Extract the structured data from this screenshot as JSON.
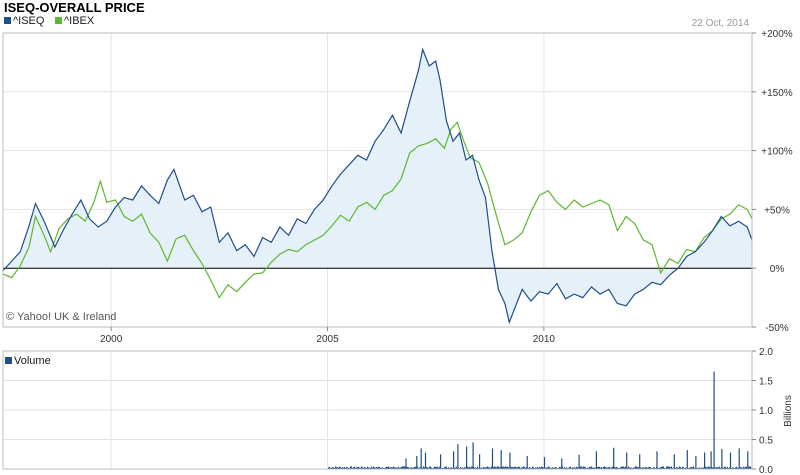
{
  "header": {
    "title": "ISEQ-OVERALL PRICE",
    "date": "22 Oct, 2014",
    "credit": "© Yahoo! UK & Ireland"
  },
  "colors": {
    "iseq": "#1f4e8c",
    "ibex": "#5cb82e",
    "area": "#e6f0f8",
    "grid": "#e3e3e3",
    "zero": "#000000",
    "volume": "#1f4e8c"
  },
  "chart_data": [
    {
      "type": "line",
      "name": "price-comparison",
      "x_unit": "year",
      "xlim": [
        1997.5,
        2014.81
      ],
      "ylim": [
        -50,
        200
      ],
      "y_ticks": [
        -50,
        0,
        50,
        100,
        150,
        200
      ],
      "y_tick_labels": [
        "-50%",
        "0%",
        "+50%",
        "+100%",
        "+150%",
        "+200%"
      ],
      "x_ticks": [
        2000,
        2005,
        2010
      ],
      "x_tick_labels": [
        "2000",
        "2005",
        "2010"
      ],
      "grid": true,
      "legend_position": "top-left",
      "series": [
        {
          "name": "^ISEQ",
          "color": "#1f4e8c",
          "fill": true,
          "points": [
            [
              1997.5,
              -2
            ],
            [
              1997.7,
              6
            ],
            [
              1997.9,
              14
            ],
            [
              1998.1,
              36
            ],
            [
              1998.25,
              55
            ],
            [
              1998.45,
              40
            ],
            [
              1998.7,
              18
            ],
            [
              1998.9,
              33
            ],
            [
              1999.1,
              46
            ],
            [
              1999.3,
              58
            ],
            [
              1999.5,
              42
            ],
            [
              1999.7,
              35
            ],
            [
              1999.9,
              40
            ],
            [
              2000.1,
              52
            ],
            [
              2000.3,
              60
            ],
            [
              2000.5,
              58
            ],
            [
              2000.7,
              70
            ],
            [
              2000.9,
              62
            ],
            [
              2001.1,
              55
            ],
            [
              2001.3,
              75
            ],
            [
              2001.45,
              84
            ],
            [
              2001.7,
              58
            ],
            [
              2001.9,
              62
            ],
            [
              2002.1,
              48
            ],
            [
              2002.3,
              52
            ],
            [
              2002.5,
              22
            ],
            [
              2002.7,
              30
            ],
            [
              2002.9,
              15
            ],
            [
              2003.1,
              20
            ],
            [
              2003.3,
              10
            ],
            [
              2003.5,
              26
            ],
            [
              2003.7,
              22
            ],
            [
              2003.9,
              35
            ],
            [
              2004.1,
              28
            ],
            [
              2004.3,
              42
            ],
            [
              2004.5,
              38
            ],
            [
              2004.7,
              50
            ],
            [
              2004.9,
              58
            ],
            [
              2005.1,
              70
            ],
            [
              2005.3,
              80
            ],
            [
              2005.5,
              88
            ],
            [
              2005.7,
              96
            ],
            [
              2005.9,
              92
            ],
            [
              2006.1,
              108
            ],
            [
              2006.3,
              118
            ],
            [
              2006.5,
              130
            ],
            [
              2006.7,
              115
            ],
            [
              2006.9,
              142
            ],
            [
              2007.1,
              168
            ],
            [
              2007.2,
              186
            ],
            [
              2007.35,
              172
            ],
            [
              2007.5,
              176
            ],
            [
              2007.6,
              160
            ],
            [
              2007.75,
              125
            ],
            [
              2007.9,
              108
            ],
            [
              2008.05,
              115
            ],
            [
              2008.2,
              92
            ],
            [
              2008.35,
              96
            ],
            [
              2008.5,
              75
            ],
            [
              2008.65,
              60
            ],
            [
              2008.8,
              15
            ],
            [
              2008.95,
              -18
            ],
            [
              2009.1,
              -30
            ],
            [
              2009.2,
              -46
            ],
            [
              2009.35,
              -32
            ],
            [
              2009.5,
              -18
            ],
            [
              2009.7,
              -28
            ],
            [
              2009.9,
              -20
            ],
            [
              2010.1,
              -22
            ],
            [
              2010.3,
              -13
            ],
            [
              2010.5,
              -26
            ],
            [
              2010.7,
              -22
            ],
            [
              2010.9,
              -25
            ],
            [
              2011.1,
              -16
            ],
            [
              2011.3,
              -22
            ],
            [
              2011.5,
              -18
            ],
            [
              2011.7,
              -30
            ],
            [
              2011.9,
              -32
            ],
            [
              2012.1,
              -22
            ],
            [
              2012.3,
              -18
            ],
            [
              2012.5,
              -12
            ],
            [
              2012.7,
              -14
            ],
            [
              2012.9,
              -6
            ],
            [
              2013.1,
              0
            ],
            [
              2013.3,
              10
            ],
            [
              2013.5,
              14
            ],
            [
              2013.7,
              22
            ],
            [
              2013.9,
              32
            ],
            [
              2014.1,
              44
            ],
            [
              2014.3,
              36
            ],
            [
              2014.5,
              40
            ],
            [
              2014.7,
              35
            ],
            [
              2014.81,
              24
            ]
          ]
        },
        {
          "name": "^IBEX",
          "color": "#5cb82e",
          "fill": false,
          "points": [
            [
              1997.5,
              -5
            ],
            [
              1997.7,
              -8
            ],
            [
              1997.9,
              2
            ],
            [
              1998.1,
              18
            ],
            [
              1998.25,
              44
            ],
            [
              1998.45,
              28
            ],
            [
              1998.6,
              14
            ],
            [
              1998.8,
              34
            ],
            [
              1999.0,
              42
            ],
            [
              1999.2,
              46
            ],
            [
              1999.4,
              40
            ],
            [
              1999.6,
              56
            ],
            [
              1999.75,
              74
            ],
            [
              1999.9,
              56
            ],
            [
              2000.1,
              58
            ],
            [
              2000.3,
              44
            ],
            [
              2000.5,
              40
            ],
            [
              2000.7,
              46
            ],
            [
              2000.9,
              30
            ],
            [
              2001.1,
              22
            ],
            [
              2001.3,
              6
            ],
            [
              2001.5,
              25
            ],
            [
              2001.7,
              28
            ],
            [
              2001.9,
              15
            ],
            [
              2002.1,
              4
            ],
            [
              2002.3,
              -10
            ],
            [
              2002.5,
              -25
            ],
            [
              2002.7,
              -14
            ],
            [
              2002.9,
              -20
            ],
            [
              2003.1,
              -12
            ],
            [
              2003.3,
              -5
            ],
            [
              2003.5,
              -4
            ],
            [
              2003.7,
              5
            ],
            [
              2003.9,
              12
            ],
            [
              2004.1,
              16
            ],
            [
              2004.3,
              14
            ],
            [
              2004.5,
              20
            ],
            [
              2004.7,
              24
            ],
            [
              2004.9,
              28
            ],
            [
              2005.1,
              36
            ],
            [
              2005.3,
              45
            ],
            [
              2005.5,
              40
            ],
            [
              2005.7,
              52
            ],
            [
              2005.9,
              56
            ],
            [
              2006.1,
              50
            ],
            [
              2006.3,
              62
            ],
            [
              2006.5,
              66
            ],
            [
              2006.7,
              76
            ],
            [
              2006.9,
              98
            ],
            [
              2007.1,
              104
            ],
            [
              2007.3,
              106
            ],
            [
              2007.5,
              110
            ],
            [
              2007.7,
              102
            ],
            [
              2007.85,
              118
            ],
            [
              2008.0,
              124
            ],
            [
              2008.15,
              108
            ],
            [
              2008.3,
              94
            ],
            [
              2008.5,
              90
            ],
            [
              2008.7,
              72
            ],
            [
              2008.9,
              45
            ],
            [
              2009.1,
              20
            ],
            [
              2009.3,
              24
            ],
            [
              2009.5,
              30
            ],
            [
              2009.7,
              48
            ],
            [
              2009.9,
              62
            ],
            [
              2010.1,
              66
            ],
            [
              2010.3,
              56
            ],
            [
              2010.5,
              50
            ],
            [
              2010.7,
              58
            ],
            [
              2010.9,
              52
            ],
            [
              2011.1,
              55
            ],
            [
              2011.3,
              58
            ],
            [
              2011.5,
              54
            ],
            [
              2011.7,
              32
            ],
            [
              2011.9,
              44
            ],
            [
              2012.1,
              38
            ],
            [
              2012.3,
              24
            ],
            [
              2012.5,
              20
            ],
            [
              2012.7,
              -4
            ],
            [
              2012.9,
              8
            ],
            [
              2013.1,
              4
            ],
            [
              2013.3,
              16
            ],
            [
              2013.5,
              14
            ],
            [
              2013.7,
              26
            ],
            [
              2013.9,
              32
            ],
            [
              2014.1,
              42
            ],
            [
              2014.3,
              46
            ],
            [
              2014.5,
              54
            ],
            [
              2014.7,
              50
            ],
            [
              2014.81,
              42
            ]
          ]
        }
      ]
    },
    {
      "type": "bar",
      "name": "volume",
      "legend": "Volume",
      "ylabel": "Billions",
      "ylim": [
        0,
        2.0
      ],
      "y_ticks": [
        0,
        0.5,
        1.0,
        1.5,
        2.0
      ],
      "y_tick_labels": [
        "0.0",
        "0.5",
        "1.0",
        "1.5",
        "2.0"
      ],
      "volume_start": 2005.0,
      "baseline": 0.03,
      "spikes": [
        [
          2006.8,
          0.18
        ],
        [
          2007.05,
          0.22
        ],
        [
          2007.15,
          0.35
        ],
        [
          2007.25,
          0.28
        ],
        [
          2007.6,
          0.25
        ],
        [
          2007.9,
          0.3
        ],
        [
          2008.0,
          0.42
        ],
        [
          2008.2,
          0.38
        ],
        [
          2008.35,
          0.45
        ],
        [
          2008.5,
          0.25
        ],
        [
          2008.8,
          0.35
        ],
        [
          2009.0,
          0.32
        ],
        [
          2009.2,
          0.28
        ],
        [
          2009.6,
          0.22
        ],
        [
          2010.0,
          0.2
        ],
        [
          2010.4,
          0.18
        ],
        [
          2010.8,
          0.24
        ],
        [
          2011.2,
          0.3
        ],
        [
          2011.6,
          0.36
        ],
        [
          2011.9,
          0.28
        ],
        [
          2012.2,
          0.25
        ],
        [
          2012.6,
          0.3
        ],
        [
          2013.0,
          0.25
        ],
        [
          2013.3,
          0.32
        ],
        [
          2013.5,
          0.22
        ],
        [
          2013.7,
          0.28
        ],
        [
          2013.85,
          0.3
        ],
        [
          2013.92,
          1.65
        ],
        [
          2014.1,
          0.34
        ],
        [
          2014.3,
          0.28
        ],
        [
          2014.5,
          0.35
        ],
        [
          2014.7,
          0.3
        ]
      ]
    }
  ]
}
